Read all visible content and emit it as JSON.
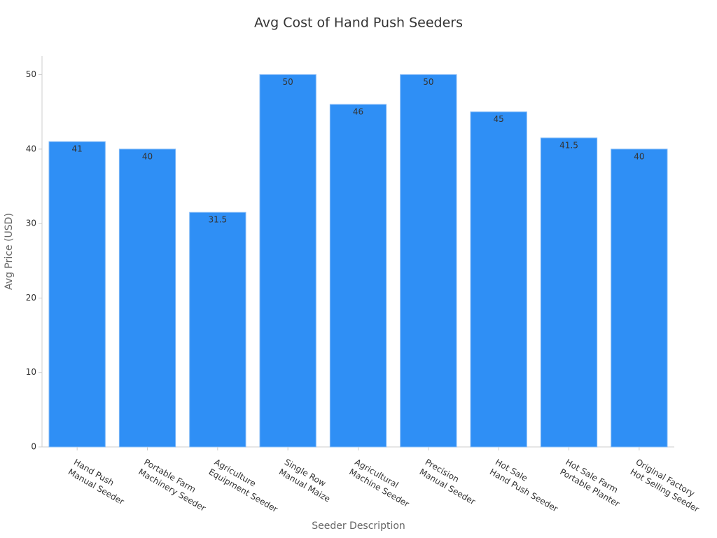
{
  "chart_data": {
    "type": "bar",
    "title": "Avg Cost of Hand Push Seeders",
    "x_label": "Seeder Description",
    "y_label": "Avg Price (USD)",
    "categories": [
      [
        "Hand Push",
        "Manual Seeder"
      ],
      [
        "Portable Farm",
        "Machinery Seeder"
      ],
      [
        "Agriculture",
        "Equipment Seeder"
      ],
      [
        "Single Row",
        "Manual Maize"
      ],
      [
        "Agricultural",
        "Machine Seeder"
      ],
      [
        "Precision",
        "Manual Seeder"
      ],
      [
        "Hot Sale",
        "Hand Push Seeder"
      ],
      [
        "Hot Sale Farm",
        "Portable Planter"
      ],
      [
        "Original Factory",
        "Hot Selling Seeder"
      ]
    ],
    "values": [
      41,
      40,
      31.5,
      50,
      46,
      50,
      45,
      41.5,
      40
    ],
    "color": "#2f8ff5",
    "ylim": [
      0,
      52.5
    ],
    "yticks": [
      0,
      10,
      20,
      30,
      40,
      50
    ],
    "grid": false
  }
}
